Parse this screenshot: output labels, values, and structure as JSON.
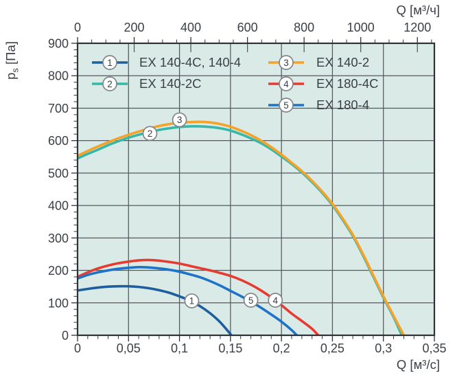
{
  "colors": {
    "plot_bg": "#daeae6",
    "grid": "#55585d",
    "frame": "#2e3237",
    "tick": "#2e3237",
    "text": "#3b4046",
    "marker_circle_fill": "#ffffff",
    "marker_circle_stroke": "#80858a"
  },
  "chart_data": {
    "type": "line",
    "title": "",
    "xlabel_top": "Q [м³/ч]",
    "xlabel_bottom": "Q [м³/с]",
    "ylabel": "pₛ [Па]",
    "ylabel_parts": {
      "base": "p",
      "sub": "s",
      "rest": " [Па]"
    },
    "xlim": [
      0,
      0.35
    ],
    "ylim": [
      0,
      900
    ],
    "grid": true,
    "legend_position": "top-inside",
    "axis_top": {
      "tick_labels": [
        "0",
        "200",
        "400",
        "600",
        "800",
        "1000",
        "1200"
      ],
      "tick_values_m3h": [
        0,
        200,
        400,
        600,
        800,
        1000,
        1200
      ],
      "minor_step_m3h": 50,
      "max_m3h": 1260
    },
    "axis_bottom": {
      "tick_labels": [
        "0",
        "0,05",
        "0,1",
        "0,15",
        "0,2",
        "0,25",
        "0,3",
        "0,35"
      ],
      "tick_values": [
        0,
        0.05,
        0.1,
        0.15,
        0.2,
        0.25,
        0.3,
        0.35
      ],
      "minor_step": 0.01
    },
    "axis_left": {
      "tick_labels": [
        "0",
        "100",
        "200",
        "300",
        "400",
        "500",
        "600",
        "700",
        "800",
        "900"
      ],
      "tick_values": [
        0,
        100,
        200,
        300,
        400,
        500,
        600,
        700,
        800,
        900
      ],
      "minor_step": 20
    },
    "series": [
      {
        "id": "1",
        "name": "EX 140-4C, 140-4",
        "color": "#1e5d9e",
        "points": [
          [
            0,
            138
          ],
          [
            0.01,
            143
          ],
          [
            0.02,
            147
          ],
          [
            0.03,
            150
          ],
          [
            0.04,
            151
          ],
          [
            0.05,
            151
          ],
          [
            0.06,
            149
          ],
          [
            0.07,
            145
          ],
          [
            0.08,
            139
          ],
          [
            0.09,
            131
          ],
          [
            0.1,
            120
          ],
          [
            0.11,
            107
          ],
          [
            0.12,
            90
          ],
          [
            0.13,
            68
          ],
          [
            0.14,
            40
          ],
          [
            0.151,
            0
          ]
        ]
      },
      {
        "id": "2",
        "name": "EX 140-2C",
        "color": "#36b7a7",
        "points": [
          [
            0,
            545
          ],
          [
            0.01,
            559
          ],
          [
            0.02,
            572
          ],
          [
            0.03,
            586
          ],
          [
            0.04,
            598
          ],
          [
            0.05,
            609
          ],
          [
            0.06,
            618
          ],
          [
            0.07,
            626
          ],
          [
            0.08,
            633
          ],
          [
            0.09,
            638
          ],
          [
            0.1,
            642
          ],
          [
            0.11,
            644
          ],
          [
            0.12,
            644
          ],
          [
            0.13,
            642
          ],
          [
            0.14,
            638
          ],
          [
            0.15,
            631
          ],
          [
            0.16,
            620
          ],
          [
            0.17,
            607
          ],
          [
            0.18,
            592
          ],
          [
            0.19,
            573
          ],
          [
            0.2,
            551
          ],
          [
            0.21,
            528
          ],
          [
            0.22,
            502
          ],
          [
            0.23,
            472
          ],
          [
            0.24,
            439
          ],
          [
            0.25,
            401
          ],
          [
            0.26,
            356
          ],
          [
            0.27,
            306
          ],
          [
            0.28,
            246
          ],
          [
            0.29,
            181
          ],
          [
            0.3,
            116
          ],
          [
            0.31,
            56
          ],
          [
            0.318,
            0
          ]
        ]
      },
      {
        "id": "3",
        "name": "EX 140-2",
        "color": "#f4a229",
        "points": [
          [
            0,
            553
          ],
          [
            0.01,
            568
          ],
          [
            0.02,
            582
          ],
          [
            0.03,
            595
          ],
          [
            0.04,
            607
          ],
          [
            0.05,
            618
          ],
          [
            0.06,
            628
          ],
          [
            0.07,
            637
          ],
          [
            0.08,
            645
          ],
          [
            0.09,
            651
          ],
          [
            0.1,
            655
          ],
          [
            0.11,
            657
          ],
          [
            0.12,
            658
          ],
          [
            0.13,
            656
          ],
          [
            0.14,
            651
          ],
          [
            0.15,
            643
          ],
          [
            0.16,
            631
          ],
          [
            0.17,
            617
          ],
          [
            0.18,
            600
          ],
          [
            0.19,
            580
          ],
          [
            0.2,
            557
          ],
          [
            0.21,
            532
          ],
          [
            0.22,
            506
          ],
          [
            0.23,
            476
          ],
          [
            0.24,
            443
          ],
          [
            0.25,
            405
          ],
          [
            0.26,
            360
          ],
          [
            0.27,
            310
          ],
          [
            0.28,
            250
          ],
          [
            0.29,
            185
          ],
          [
            0.3,
            120
          ],
          [
            0.31,
            60
          ],
          [
            0.32,
            0
          ]
        ]
      },
      {
        "id": "4",
        "name": "EX 180-4C",
        "color": "#e63b30",
        "points": [
          [
            0,
            180
          ],
          [
            0.01,
            194
          ],
          [
            0.02,
            206
          ],
          [
            0.03,
            215
          ],
          [
            0.04,
            222
          ],
          [
            0.05,
            227
          ],
          [
            0.06,
            231
          ],
          [
            0.07,
            232
          ],
          [
            0.08,
            230
          ],
          [
            0.09,
            226
          ],
          [
            0.1,
            221
          ],
          [
            0.11,
            214
          ],
          [
            0.12,
            207
          ],
          [
            0.13,
            200
          ],
          [
            0.14,
            192
          ],
          [
            0.15,
            183
          ],
          [
            0.16,
            171
          ],
          [
            0.17,
            156
          ],
          [
            0.18,
            138
          ],
          [
            0.19,
            117
          ],
          [
            0.2,
            93
          ],
          [
            0.21,
            67
          ],
          [
            0.22,
            44
          ],
          [
            0.23,
            20
          ],
          [
            0.236,
            0
          ]
        ]
      },
      {
        "id": "5",
        "name": "EX 180-4",
        "color": "#1e72c8",
        "points": [
          [
            0,
            175
          ],
          [
            0.01,
            186
          ],
          [
            0.02,
            194
          ],
          [
            0.03,
            200
          ],
          [
            0.04,
            205
          ],
          [
            0.05,
            208
          ],
          [
            0.06,
            210
          ],
          [
            0.07,
            209
          ],
          [
            0.08,
            206
          ],
          [
            0.09,
            202
          ],
          [
            0.1,
            196
          ],
          [
            0.11,
            188
          ],
          [
            0.12,
            179
          ],
          [
            0.13,
            167
          ],
          [
            0.14,
            153
          ],
          [
            0.15,
            137
          ],
          [
            0.16,
            121
          ],
          [
            0.17,
            104
          ],
          [
            0.18,
            85
          ],
          [
            0.19,
            64
          ],
          [
            0.2,
            42
          ],
          [
            0.21,
            16
          ],
          [
            0.215,
            0
          ]
        ]
      }
    ],
    "curve_markers": [
      {
        "num": "1",
        "q": 0.112,
        "p": 106
      },
      {
        "num": "2",
        "q": 0.071,
        "p": 622
      },
      {
        "num": "3",
        "q": 0.1,
        "p": 664
      },
      {
        "num": "4",
        "q": 0.194,
        "p": 108
      },
      {
        "num": "5",
        "q": 0.17,
        "p": 108
      }
    ]
  },
  "legend": {
    "columns": [
      [
        {
          "num": "1",
          "label": "EX 140-4C, 140-4"
        },
        {
          "num": "2",
          "label": "EX 140-2C"
        }
      ],
      [
        {
          "num": "3",
          "label": "EX 140-2"
        },
        {
          "num": "4",
          "label": "EX 180-4C"
        },
        {
          "num": "5",
          "label": "EX 180-4"
        }
      ]
    ]
  }
}
